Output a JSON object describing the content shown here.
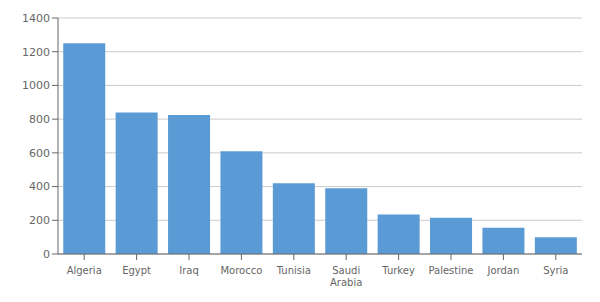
{
  "chart_data": {
    "type": "bar",
    "categories": [
      "Algeria",
      "Egypt",
      "Iraq",
      "Morocco",
      "Tunisia",
      "Saudi\nArabia",
      "Turkey",
      "Palestine",
      "Jordan",
      "Syria"
    ],
    "values": [
      1250,
      840,
      825,
      610,
      420,
      390,
      235,
      215,
      155,
      100
    ],
    "color": "#5b9bd5",
    "ylim": [
      0,
      1400
    ],
    "yticks": [
      0,
      200,
      400,
      600,
      800,
      1000,
      1200,
      1400
    ],
    "grid": true
  }
}
